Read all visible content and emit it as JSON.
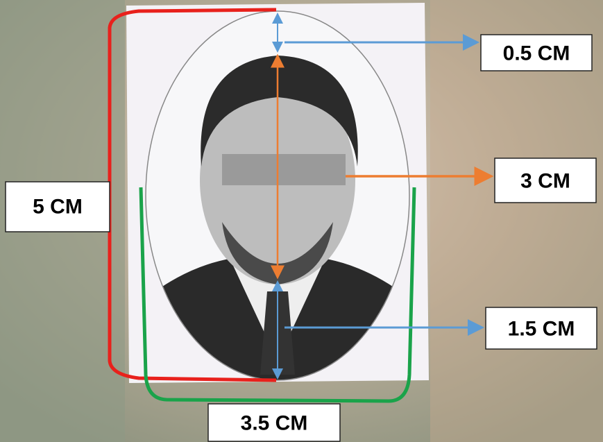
{
  "labels": [
    "0.5 CM",
    "3 CM",
    "1.5 CM",
    "5 CM",
    "3.5 CM"
  ]
}
